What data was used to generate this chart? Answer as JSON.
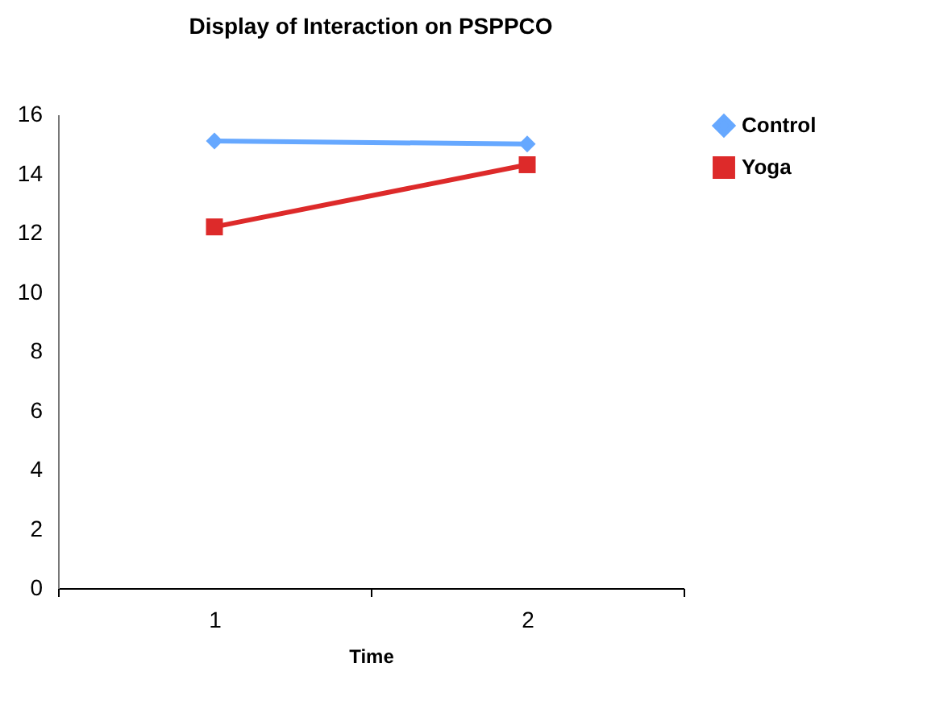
{
  "chart_data": {
    "type": "line",
    "title": "Display of Interaction on PSPPCO",
    "xlabel": "Time",
    "categories": [
      "1",
      "2"
    ],
    "series": [
      {
        "name": "Control",
        "color": "#66a8ff",
        "marker": "diamond",
        "values": [
          15.1,
          15.0
        ]
      },
      {
        "name": "Yoga",
        "color": "#dd2a2a",
        "marker": "square",
        "values": [
          12.2,
          14.3
        ]
      }
    ],
    "ylim": [
      0,
      16
    ],
    "yticks": [
      0,
      2,
      4,
      6,
      8,
      10,
      12,
      14,
      16
    ],
    "grid": false,
    "legend": "right"
  }
}
